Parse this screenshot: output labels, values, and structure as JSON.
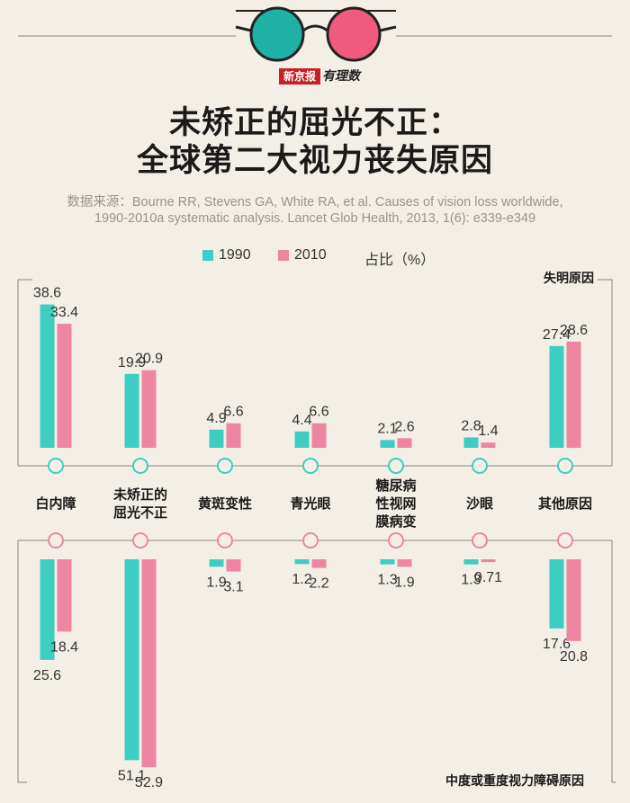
{
  "header": {
    "title_line1": "未矫正的屈光不正：",
    "title_line2": "全球第二大视力丧失原因",
    "source_line1": "数据来源：Bourne RR, Stevens GA, White RA, et al. Causes of vision loss worldwide,",
    "source_line2": "1990-2010a systematic analysis. Lancet Glob Health, 2013, 1(6): e339-e349",
    "logo_left": "新京报",
    "logo_right": "有理数"
  },
  "legend": {
    "series1": "1990",
    "series2": "2010",
    "unit": "占比（%）"
  },
  "colors": {
    "series1": "#3ecdc1",
    "series2": "#ee86a3",
    "line": "#8a857c",
    "glasses_left": "#1fb1a6",
    "glasses_right": "#f05a7e"
  },
  "sections": {
    "top": "失明原因",
    "bottom": "中度或重度视力障碍原因"
  },
  "chart_data": {
    "type": "bar",
    "categories": [
      "白内障",
      "未矫正的\n屈光不正",
      "黄斑变性",
      "青光眼",
      "糖尿病\n性视网\n膜病变",
      "沙眼",
      "其他原因"
    ],
    "blindness": {
      "series": [
        {
          "name": "1990",
          "values": [
            38.6,
            19.9,
            4.9,
            4.4,
            2.1,
            2.8,
            27.4
          ],
          "labels": [
            "38.6",
            "19.9",
            "4.9",
            "4.4",
            "2.1",
            "2.8",
            "27.4"
          ]
        },
        {
          "name": "2010",
          "values": [
            33.4,
            20.9,
            6.6,
            6.6,
            2.6,
            1.4,
            28.6
          ],
          "labels": [
            "33.4",
            "20.9",
            "6.6",
            "6.6",
            "2.6",
            "1.4",
            "28.6"
          ]
        }
      ]
    },
    "impairment": {
      "series": [
        {
          "name": "1990",
          "values": [
            25.6,
            51.1,
            1.9,
            1.2,
            1.3,
            1.3,
            17.6
          ],
          "labels": [
            "25.6",
            "51.1",
            "1.9",
            "1.2",
            "1.3",
            "1.3",
            "17.6"
          ]
        },
        {
          "name": "2010",
          "values": [
            18.4,
            52.9,
            3.1,
            2.2,
            1.9,
            0.71,
            20.8
          ],
          "labels": [
            "18.4",
            "52.9",
            "3.1",
            "2.2",
            "1.9",
            "0.71",
            "20.8"
          ]
        }
      ]
    }
  }
}
